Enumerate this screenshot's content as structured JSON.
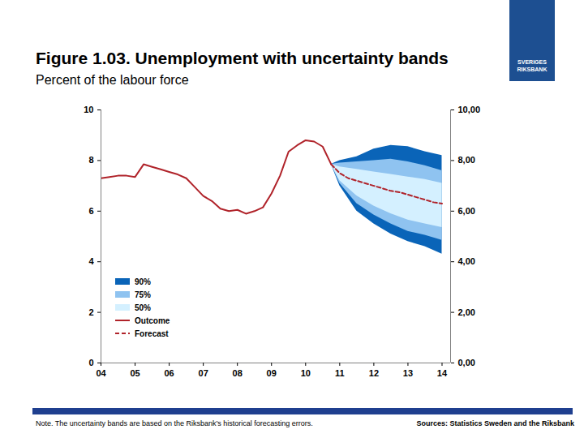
{
  "chart_data": {
    "type": "line",
    "title": "Figure 1.03. Unemployment with uncertainty bands",
    "subtitle": "Percent of the labour force",
    "note": "Note. The uncertainty bands are based on the Riksbank’s historical forecasting errors.",
    "source": "Sources: Statistics Sweden and the Riksbank",
    "logo_text": "SVERIGES RIKSBANK",
    "xlim": [
      2004,
      2014.25
    ],
    "xticks": [
      {
        "value": 2004,
        "label": "04"
      },
      {
        "value": 2005,
        "label": "05"
      },
      {
        "value": 2006,
        "label": "06"
      },
      {
        "value": 2007,
        "label": "07"
      },
      {
        "value": 2008,
        "label": "08"
      },
      {
        "value": 2009,
        "label": "09"
      },
      {
        "value": 2010,
        "label": "10"
      },
      {
        "value": 2011,
        "label": "11"
      },
      {
        "value": 2012,
        "label": "12"
      },
      {
        "value": 2013,
        "label": "13"
      },
      {
        "value": 2014,
        "label": "14"
      }
    ],
    "ylim": [
      0,
      10
    ],
    "yticks": [
      0,
      2,
      4,
      6,
      8,
      10
    ],
    "y2lim": [
      0,
      10
    ],
    "y2ticks": [
      {
        "value": 0,
        "label": "0,00"
      },
      {
        "value": 2,
        "label": "2,00"
      },
      {
        "value": 4,
        "label": "4,00"
      },
      {
        "value": 6,
        "label": "6,00"
      },
      {
        "value": 8,
        "label": "8,00"
      },
      {
        "value": 10,
        "label": "10,00"
      }
    ],
    "grid": false,
    "legend": "bottom-left",
    "series": [
      {
        "name": "90%",
        "type": "area",
        "color": "#0a64b8",
        "x": [
          2010.75,
          2011,
          2011.5,
          2012,
          2012.5,
          2013,
          2013.5,
          2014
        ],
        "lower": [
          7.85,
          7.0,
          6.0,
          5.5,
          5.1,
          4.8,
          4.6,
          4.3
        ],
        "upper": [
          7.85,
          8.0,
          8.15,
          8.45,
          8.6,
          8.55,
          8.35,
          8.2
        ]
      },
      {
        "name": "75%",
        "type": "area",
        "color": "#8fc3f0",
        "x": [
          2010.75,
          2011,
          2011.5,
          2012,
          2012.5,
          2013,
          2013.5,
          2014
        ],
        "lower": [
          7.85,
          7.1,
          6.3,
          5.85,
          5.5,
          5.2,
          5.05,
          4.85
        ],
        "upper": [
          7.85,
          7.9,
          7.95,
          8.0,
          8.05,
          7.95,
          7.8,
          7.6
        ]
      },
      {
        "name": "50%",
        "type": "area",
        "color": "#d4f0ff",
        "x": [
          2010.75,
          2011,
          2011.5,
          2012,
          2012.5,
          2013,
          2013.5,
          2014
        ],
        "lower": [
          7.85,
          7.2,
          6.6,
          6.2,
          5.9,
          5.65,
          5.5,
          5.35
        ],
        "upper": [
          7.85,
          7.75,
          7.65,
          7.55,
          7.45,
          7.35,
          7.25,
          7.1
        ]
      },
      {
        "name": "Outcome",
        "type": "line",
        "color": "#b0232a",
        "line_style": "solid",
        "x": [
          2004,
          2004.25,
          2004.5,
          2004.75,
          2005,
          2005.25,
          2005.5,
          2005.75,
          2006,
          2006.25,
          2006.5,
          2006.75,
          2007,
          2007.25,
          2007.5,
          2007.75,
          2008,
          2008.25,
          2008.5,
          2008.75,
          2009,
          2009.25,
          2009.5,
          2009.75,
          2010,
          2010.25,
          2010.5,
          2010.75
        ],
        "values": [
          7.3,
          7.35,
          7.4,
          7.4,
          7.35,
          7.85,
          7.75,
          7.65,
          7.55,
          7.45,
          7.3,
          6.95,
          6.6,
          6.4,
          6.1,
          6.0,
          6.05,
          5.9,
          6.0,
          6.15,
          6.7,
          7.4,
          8.35,
          8.6,
          8.8,
          8.75,
          8.55,
          7.85
        ]
      },
      {
        "name": "Forecast",
        "type": "line",
        "color": "#b0232a",
        "line_style": "dashed",
        "x": [
          2010.75,
          2011,
          2011.25,
          2011.5,
          2011.75,
          2012,
          2012.25,
          2012.5,
          2012.75,
          2013,
          2013.25,
          2013.5,
          2013.75,
          2014
        ],
        "values": [
          7.85,
          7.5,
          7.3,
          7.2,
          7.1,
          7.0,
          6.9,
          6.8,
          6.75,
          6.65,
          6.55,
          6.45,
          6.35,
          6.3
        ]
      }
    ]
  }
}
